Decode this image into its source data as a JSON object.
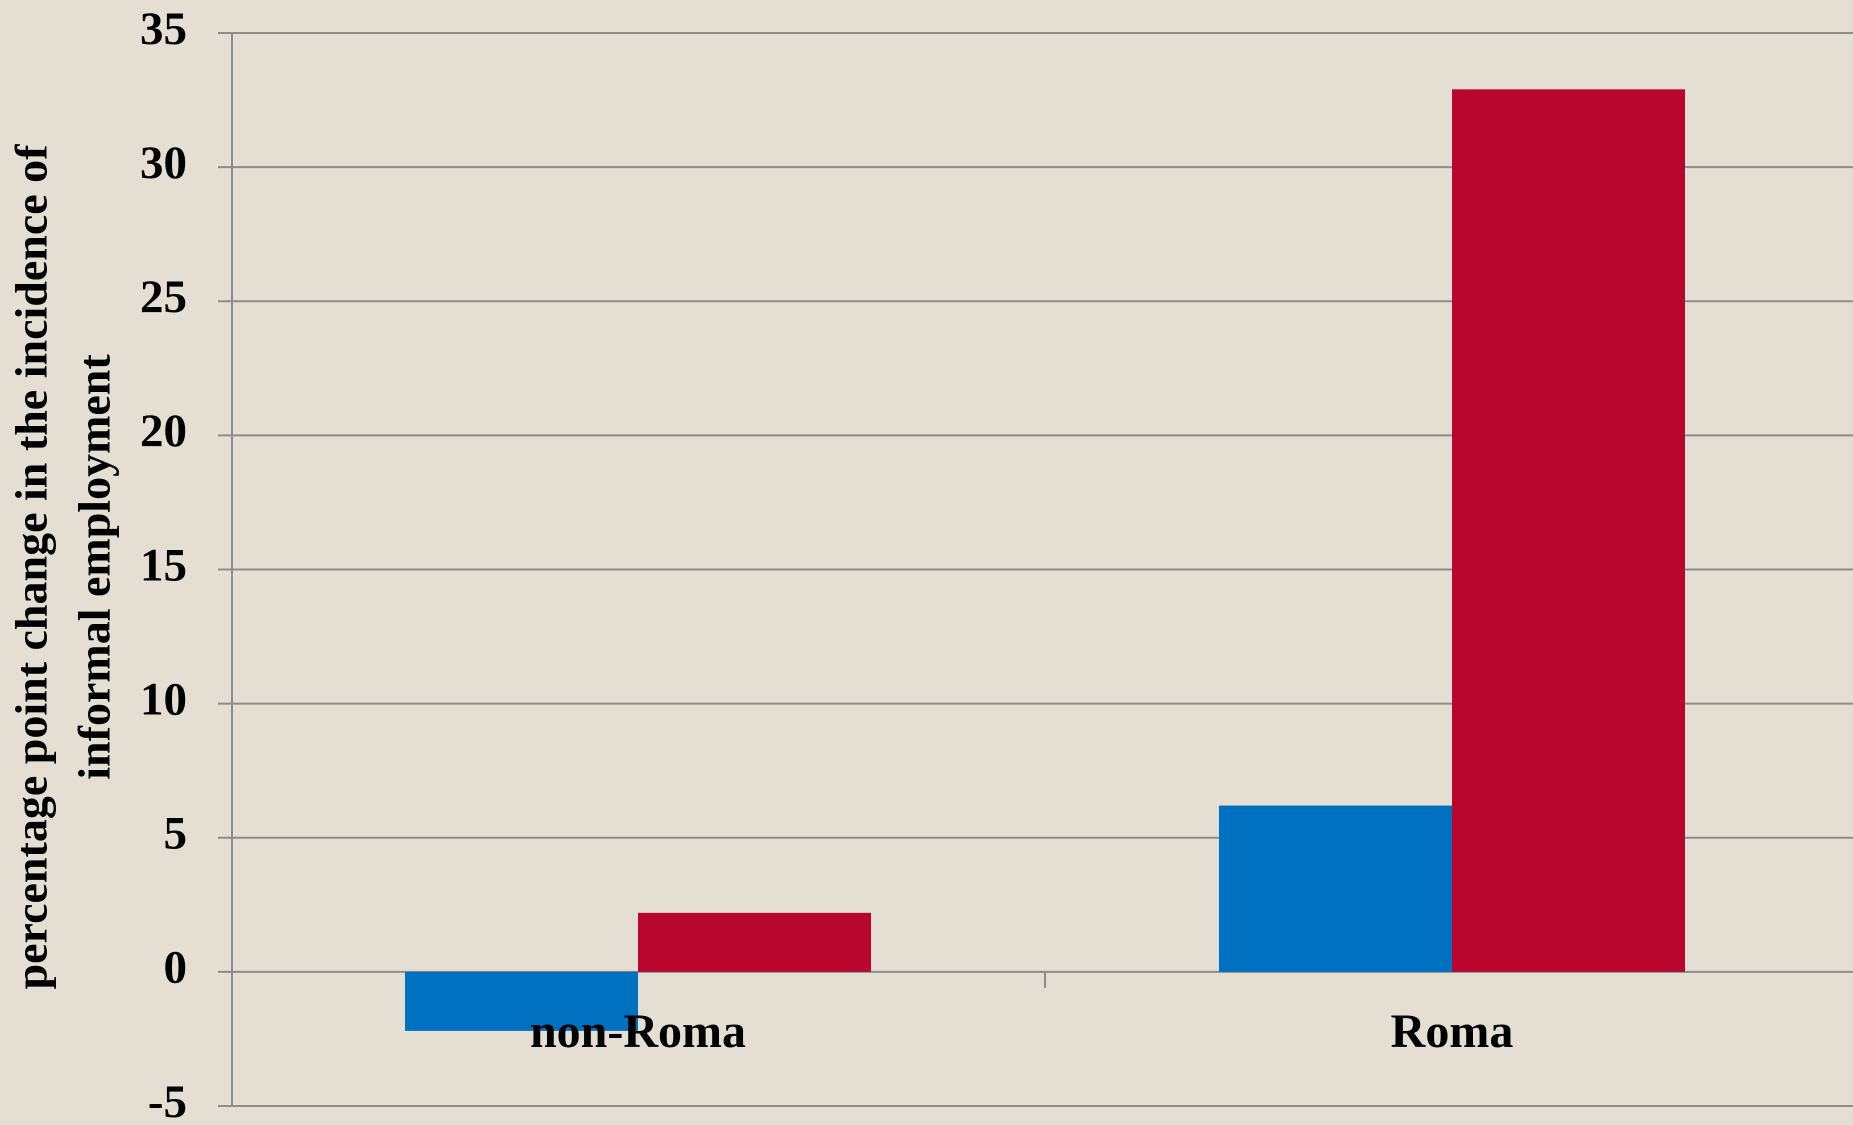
{
  "chart_data": {
    "type": "bar",
    "ylabel": [
      "percentage point change in the incidence of",
      "informal employment"
    ],
    "categories": [
      "non-Roma",
      "Roma"
    ],
    "series": [
      {
        "color": "#0070c0",
        "values": [
          -2.2,
          6.2
        ]
      },
      {
        "color": "#b8062e",
        "values": [
          2.2,
          32.9
        ]
      }
    ],
    "ylim": [
      -5,
      35
    ],
    "yticks": [
      -5,
      0,
      5,
      10,
      15,
      20,
      25,
      30,
      35
    ],
    "grid": true
  }
}
